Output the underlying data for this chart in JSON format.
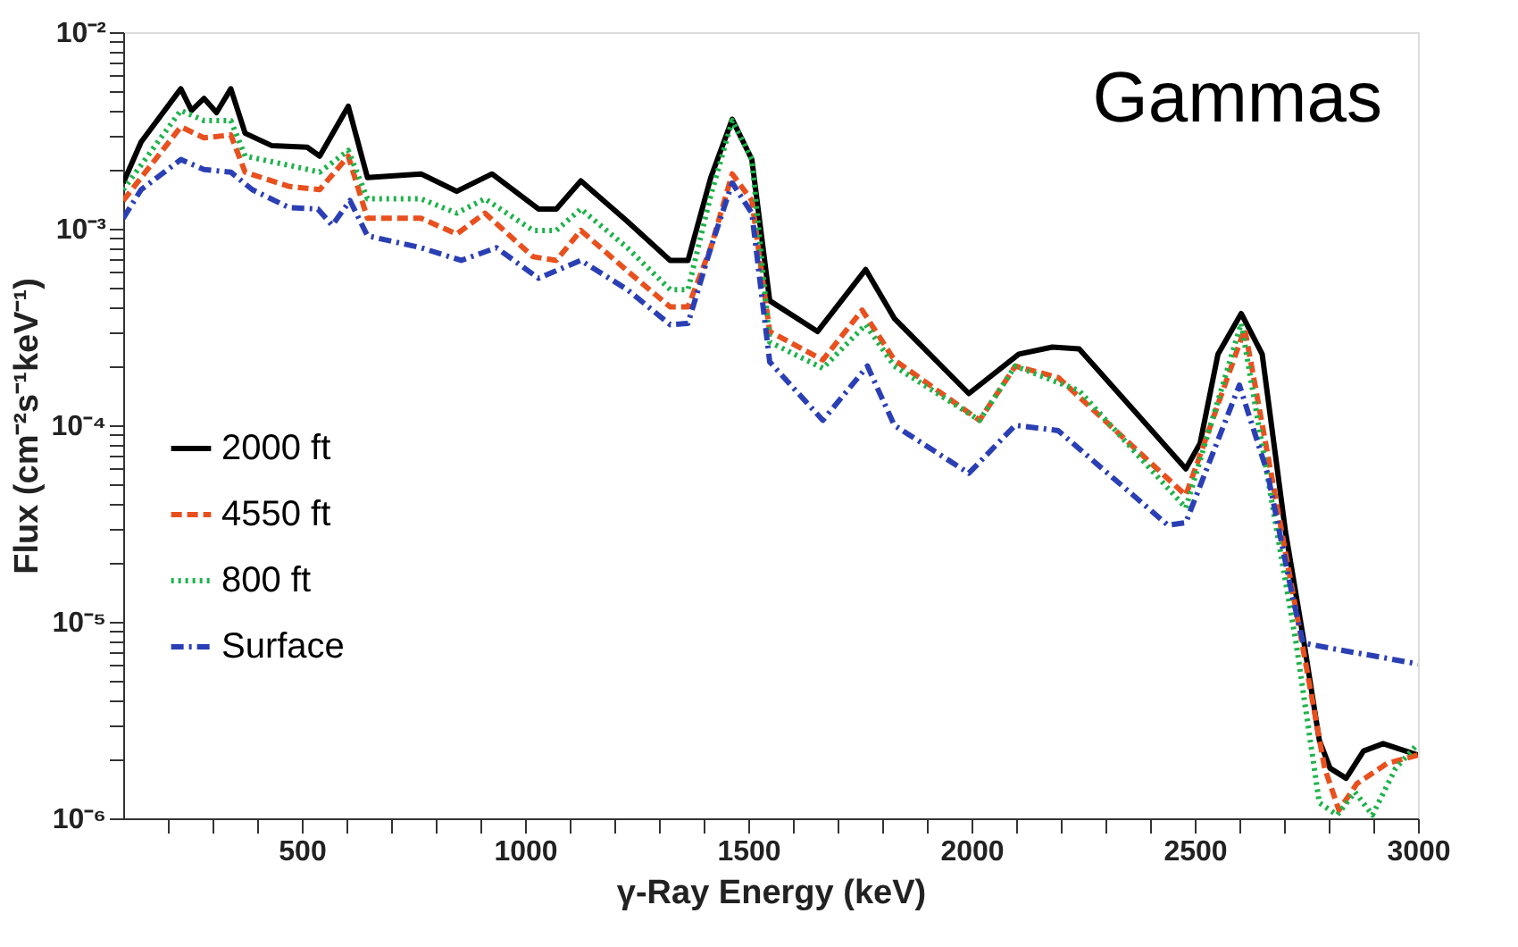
{
  "chart_data": {
    "type": "line",
    "xlabel": "γ-Ray Energy (keV)",
    "ylabel": "Flux (cm⁻²s⁻¹keV⁻¹)",
    "annotations": [
      "Gammas"
    ],
    "log": "y",
    "grid": false,
    "legend": "left",
    "xlim": [
      100,
      3000
    ],
    "xticks": [
      {
        "value": 200,
        "label": null
      },
      {
        "value": 300,
        "label": null
      },
      {
        "value": 400,
        "label": null
      },
      500,
      {
        "value": 600,
        "label": null
      },
      {
        "value": 700,
        "label": null
      },
      {
        "value": 800,
        "label": null
      },
      {
        "value": 900,
        "label": null
      },
      1000,
      {
        "value": 1100,
        "label": null
      },
      {
        "value": 1200,
        "label": null
      },
      {
        "value": 1300,
        "label": null
      },
      {
        "value": 1400,
        "label": null
      },
      1500,
      {
        "value": 1600,
        "label": null
      },
      {
        "value": 1700,
        "label": null
      },
      {
        "value": 1800,
        "label": null
      },
      {
        "value": 1900,
        "label": null
      },
      2000,
      {
        "value": 2100,
        "label": null
      },
      {
        "value": 2200,
        "label": null
      },
      {
        "value": 2300,
        "label": null
      },
      {
        "value": 2400,
        "label": null
      },
      2500,
      {
        "value": 2600,
        "label": null
      },
      {
        "value": 2700,
        "label": null
      },
      {
        "value": 2800,
        "label": null
      },
      {
        "value": 2900,
        "label": null
      },
      3000
    ],
    "ylim": [
      1e-06,
      0.01
    ],
    "yticks": [
      {
        "value": 1e-06,
        "label": "10⁻⁶"
      },
      {
        "value": 2e-06,
        "label": null
      },
      {
        "value": 3e-06,
        "label": null
      },
      {
        "value": 4e-06,
        "label": null
      },
      {
        "value": 5e-06,
        "label": null
      },
      {
        "value": 6e-06,
        "label": null
      },
      {
        "value": 7e-06,
        "label": null
      },
      {
        "value": 8e-06,
        "label": null
      },
      {
        "value": 9e-06,
        "label": null
      },
      {
        "value": 1e-05,
        "label": "10⁻⁵"
      },
      {
        "value": 2e-05,
        "label": null
      },
      {
        "value": 3e-05,
        "label": null
      },
      {
        "value": 4e-05,
        "label": null
      },
      {
        "value": 5e-05,
        "label": null
      },
      {
        "value": 6e-05,
        "label": null
      },
      {
        "value": 7e-05,
        "label": null
      },
      {
        "value": 8e-05,
        "label": null
      },
      {
        "value": 9e-05,
        "label": null
      },
      {
        "value": 0.0001,
        "label": "10⁻⁴"
      },
      {
        "value": 0.0002,
        "label": null
      },
      {
        "value": 0.0003,
        "label": null
      },
      {
        "value": 0.0004,
        "label": null
      },
      {
        "value": 0.0005,
        "label": null
      },
      {
        "value": 0.0006,
        "label": null
      },
      {
        "value": 0.0007,
        "label": null
      },
      {
        "value": 0.0008,
        "label": null
      },
      {
        "value": 0.0009,
        "label": null
      },
      {
        "value": 0.001,
        "label": "10⁻³"
      },
      {
        "value": 0.002,
        "label": null
      },
      {
        "value": 0.003,
        "label": null
      },
      {
        "value": 0.004,
        "label": null
      },
      {
        "value": 0.005,
        "label": null
      },
      {
        "value": 0.006,
        "label": null
      },
      {
        "value": 0.007,
        "label": null
      },
      {
        "value": 0.008,
        "label": null
      },
      {
        "value": 0.009,
        "label": null
      },
      {
        "value": 0.01,
        "label": "10⁻²"
      }
    ],
    "series": [
      {
        "name": "2000 ft",
        "color": "#000000",
        "line_style": "solid",
        "x": [
          100,
          140,
          229,
          253,
          281,
          309,
          341,
          373,
          432,
          512,
          540,
          604,
          647,
          767,
          847,
          926,
          1030,
          1070,
          1125,
          1229,
          1325,
          1365,
          1416,
          1464,
          1508,
          1548,
          1655,
          1763,
          1827,
          1994,
          2106,
          2181,
          2241,
          2480,
          2512,
          2552,
          2604,
          2651,
          2703,
          2743,
          2779,
          2803,
          2839,
          2878,
          2922,
          3000
        ],
        "values": [
          0.00171,
          0.00276,
          0.00515,
          0.004,
          0.0046,
          0.0039,
          0.00515,
          0.00306,
          0.00265,
          0.0026,
          0.00234,
          0.0042,
          0.00182,
          0.0019,
          0.00155,
          0.0019,
          0.00126,
          0.00126,
          0.00175,
          0.00109,
          0.00069,
          0.00069,
          0.00182,
          0.0036,
          0.00225,
          0.00043,
          0.0003,
          0.00062,
          0.00035,
          0.000145,
          0.00023,
          0.00025,
          0.000245,
          6e-05,
          8.1e-05,
          0.00023,
          0.00037,
          0.00023,
          2.9e-05,
          8.3e-06,
          2.5e-06,
          1.8e-06,
          1.6e-06,
          2.2e-06,
          2.4e-06,
          2.1e-06
        ]
      },
      {
        "name": "4550 ft",
        "color": "#e8501e",
        "line_style": "dashed",
        "x": [
          100,
          229,
          281,
          341,
          373,
          472,
          540,
          604,
          647,
          767,
          847,
          910,
          1018,
          1070,
          1125,
          1229,
          1325,
          1365,
          1416,
          1464,
          1508,
          1548,
          1667,
          1755,
          1827,
          2018,
          2098,
          2194,
          2480,
          2612,
          2743,
          2791,
          2823,
          2863,
          2930,
          3000
        ],
        "values": [
          0.00139,
          0.0033,
          0.0029,
          0.003,
          0.00194,
          0.00164,
          0.00158,
          0.00234,
          0.00113,
          0.00113,
          0.00094,
          0.0012,
          0.00072,
          0.00069,
          0.00098,
          0.00061,
          0.0004,
          0.0004,
          0.0008,
          0.0019,
          0.00139,
          0.0003,
          0.000215,
          0.000385,
          0.000215,
          0.000106,
          0.0002,
          0.000175,
          4.4e-05,
          0.00031,
          7.2e-06,
          1.8e-06,
          1.1e-06,
          1.5e-06,
          1.9e-06,
          2.1e-06
        ]
      },
      {
        "name": "800 ft",
        "color": "#1db34a",
        "line_style": "dotted",
        "x": [
          100,
          229,
          281,
          341,
          373,
          472,
          540,
          604,
          647,
          767,
          847,
          910,
          1018,
          1070,
          1125,
          1229,
          1325,
          1365,
          1416,
          1464,
          1508,
          1548,
          1667,
          1763,
          1827,
          2018,
          2098,
          2241,
          2480,
          2604,
          2727,
          2779,
          2819,
          2859,
          2898,
          2950,
          3000
        ],
        "values": [
          0.00158,
          0.004,
          0.00355,
          0.00355,
          0.00234,
          0.0021,
          0.00194,
          0.0025,
          0.00142,
          0.00142,
          0.0012,
          0.00142,
          0.00098,
          0.00098,
          0.00126,
          0.0008,
          0.00049,
          0.00049,
          0.00148,
          0.00355,
          0.00225,
          0.000265,
          0.000195,
          0.000325,
          0.0002,
          0.000106,
          0.0002,
          0.00015,
          3.8e-05,
          0.00033,
          7.8e-06,
          1.2e-06,
          1.04e-06,
          1.36e-06,
          1.04e-06,
          1.8e-06,
          2.4e-06
        ]
      },
      {
        "name": "Surface",
        "color": "#2b3fb5",
        "line_style": "dashdot",
        "x": [
          100,
          140,
          229,
          281,
          341,
          389,
          472,
          536,
          568,
          608,
          647,
          767,
          857,
          936,
          1030,
          1125,
          1229,
          1325,
          1365,
          1416,
          1464,
          1508,
          1548,
          1667,
          1767,
          1827,
          1994,
          2098,
          2194,
          2440,
          2480,
          2600,
          2663,
          2719,
          2743,
          2823,
          2902,
          3000
        ],
        "values": [
          0.00113,
          0.00158,
          0.00225,
          0.002,
          0.00194,
          0.00158,
          0.00128,
          0.00126,
          0.00104,
          0.00139,
          0.00092,
          0.0008,
          0.00069,
          0.0008,
          0.00056,
          0.00069,
          0.00049,
          0.000325,
          0.00033,
          0.0008,
          0.00171,
          0.0012,
          0.00021,
          0.000106,
          0.0002,
          0.0001,
          5.7e-05,
          0.0001,
          9.4e-05,
          3.1e-05,
          3.2e-05,
          0.00016,
          5.7e-05,
          1.34e-05,
          7.8e-06,
          7.2e-06,
          6.7e-06,
          6.1e-06
        ]
      }
    ]
  }
}
